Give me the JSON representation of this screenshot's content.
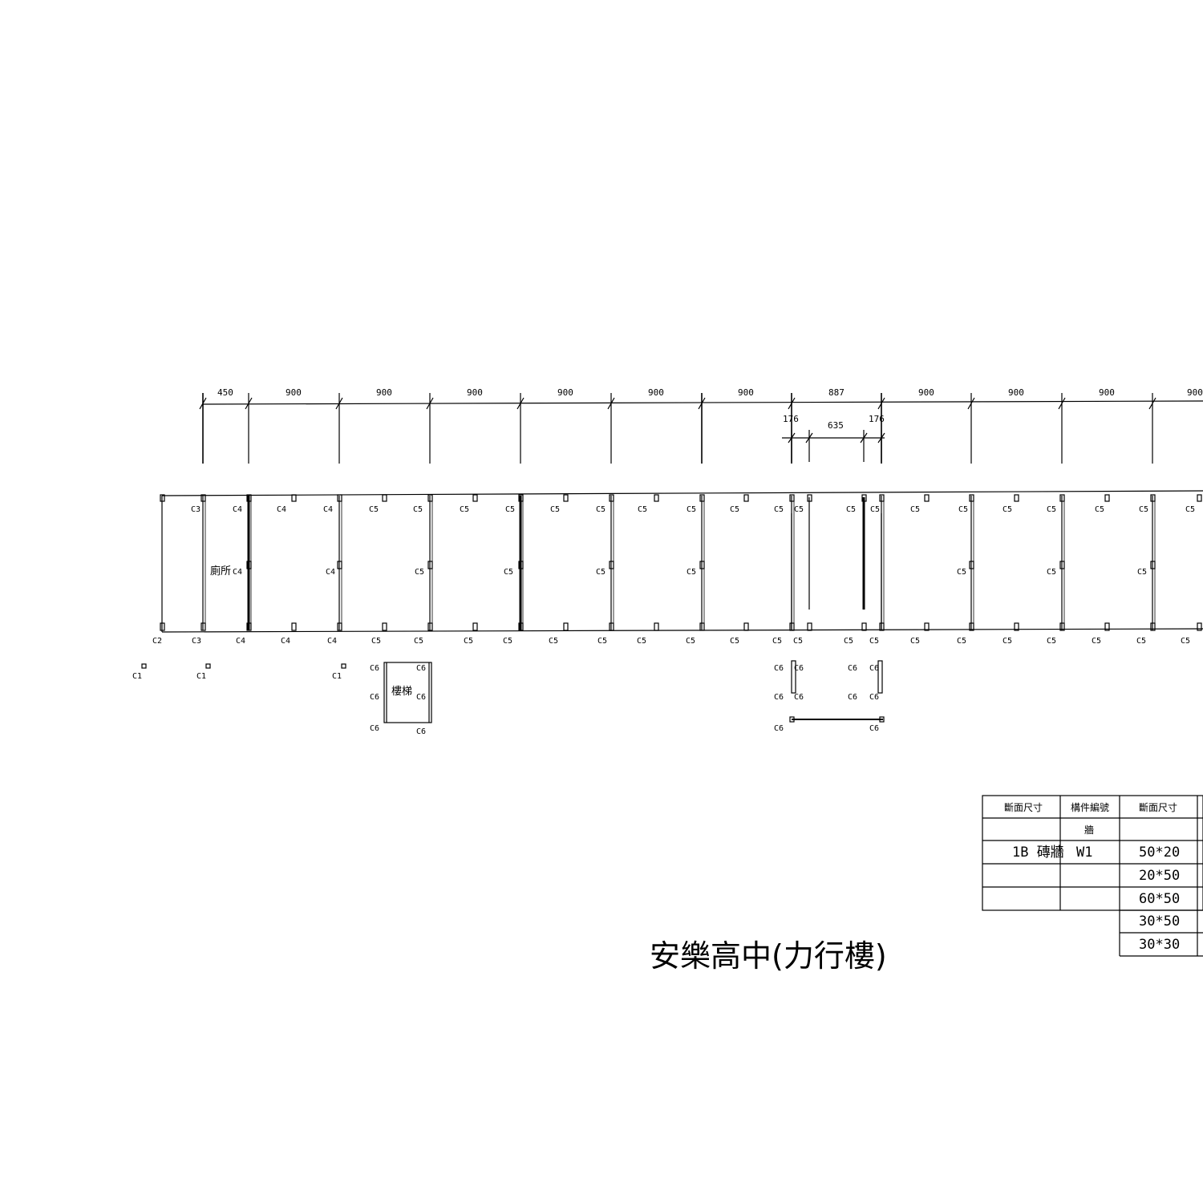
{
  "drawing": {
    "title": "安樂高中(力行樓)",
    "dimensions_top": [
      "450",
      "900",
      "900",
      "900",
      "900",
      "900",
      "900",
      "887",
      "900",
      "900",
      "900",
      "900"
    ],
    "dimensions_sub": [
      "176",
      "635",
      "176"
    ],
    "room_label_left": "廁所",
    "room_label_stair": "樓梯",
    "top_row_labels": [
      "C3",
      "C4",
      "C4",
      "C4",
      "C5",
      "C5",
      "C5",
      "C5",
      "C5",
      "C5",
      "C5",
      "C5",
      "C5",
      "C5",
      "C5",
      "C5",
      "C5",
      "C5",
      "C5",
      "C5",
      "C5",
      "C5",
      "C5",
      "C5",
      "C5"
    ],
    "bottom_row_labels": [
      "C2",
      "C3",
      "C4",
      "C4",
      "C4",
      "C5",
      "C5",
      "C5",
      "C5",
      "C5",
      "C5",
      "C5",
      "C5",
      "C5",
      "C5",
      "C5",
      "C5",
      "C5",
      "C5",
      "C5",
      "C5",
      "C5",
      "C5",
      "C5",
      "C5",
      "C5"
    ],
    "mid_row_labels": [
      "C4",
      "C4",
      "C5",
      "C5",
      "C5",
      "C5",
      "C5",
      "C5",
      "C5"
    ],
    "c1_labels": [
      "C1",
      "C1",
      "C1"
    ],
    "c6_labels": [
      "C6",
      "C6",
      "C6",
      "C6",
      "C6",
      "C6",
      "C6",
      "C6",
      "C6",
      "C6",
      "C6",
      "C6",
      "C6",
      "C6",
      "C6",
      "C6",
      "C6"
    ]
  },
  "legend_table": {
    "headers": [
      "斷面尺寸",
      "構件編號",
      "斷面尺寸"
    ],
    "rows": [
      [
        "",
        "牆",
        ""
      ],
      [
        "1B 磚牆",
        "W1",
        "50*20"
      ],
      [
        "",
        "",
        "20*50"
      ],
      [
        "",
        "",
        "60*50"
      ],
      [
        "",
        "",
        "30*50"
      ],
      [
        "",
        "",
        "30*30"
      ]
    ]
  }
}
